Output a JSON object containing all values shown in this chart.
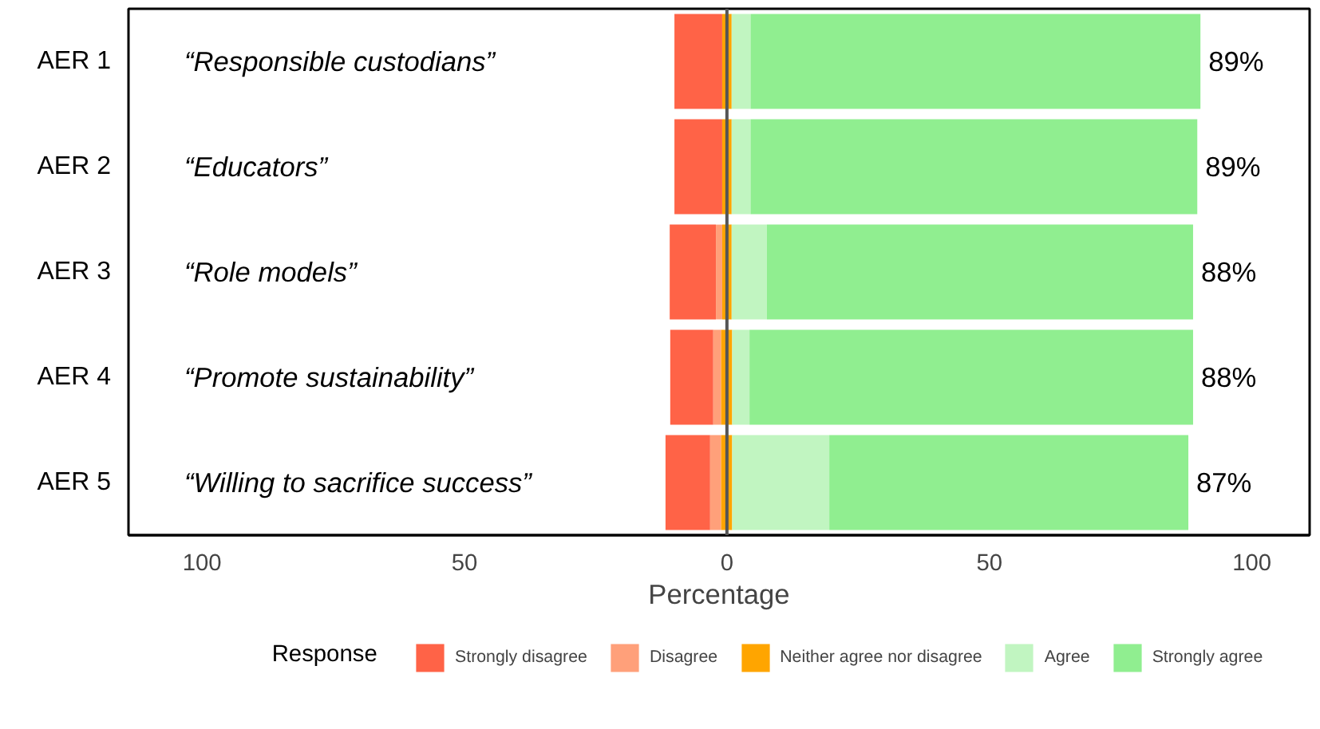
{
  "chart_data": {
    "type": "bar",
    "orientation": "horizontal",
    "categories": [
      "AER 1",
      "AER 2",
      "AER 3",
      "AER 4",
      "AER 5"
    ],
    "series": [
      {
        "name": "Strongly disagree",
        "color": "#ff6347",
        "values": [
          9.1,
          9.1,
          8.8,
          8.2,
          8.5
        ],
        "base": [
          -10.0,
          -10.0,
          -10.9,
          -10.8,
          -11.7
        ]
      },
      {
        "name": "Disagree",
        "color": "#ffa07a",
        "values": [
          null,
          null,
          1.2,
          1.5,
          2.1
        ],
        "base": [
          null,
          null,
          -2.1,
          -2.6,
          -3.2
        ]
      },
      {
        "name": "Neither agree nor disagree",
        "color": "#ffa500",
        "values": [
          1.8,
          1.8,
          1.8,
          2.1,
          2.1
        ],
        "base": [
          -0.9,
          -0.9,
          -0.9,
          -1.1,
          -1.1
        ]
      },
      {
        "name": "Agree",
        "color": "#c1f5c1",
        "values": [
          3.6,
          3.6,
          6.7,
          3.3,
          18.5
        ],
        "base": [
          0.9,
          0.9,
          0.9,
          1.0,
          1.0
        ]
      },
      {
        "name": "Strongly agree",
        "color": "#90ee90",
        "values": [
          85.7,
          85.1,
          81.2,
          84.5,
          68.4
        ],
        "base": [
          4.5,
          4.5,
          7.6,
          4.3,
          19.5
        ]
      }
    ],
    "annotations": [
      "“Responsible custodians”",
      "“Educators”",
      "“Role models”",
      "“Promote sustainability”",
      "“Willing to sacrifice success”",
      "89%",
      "89%",
      "88%",
      "88%",
      "87%"
    ],
    "ref_lines": [
      {
        "axis": "x",
        "value": 0,
        "color": "#555555"
      }
    ],
    "xlim": [
      -114,
      111
    ],
    "xticks": [
      {
        "value": -100,
        "label": "100"
      },
      {
        "value": -50,
        "label": "50"
      },
      0,
      50,
      100
    ],
    "xlabel": "Percentage",
    "legend_title": "Response",
    "legend": "bottom",
    "grid": false
  }
}
